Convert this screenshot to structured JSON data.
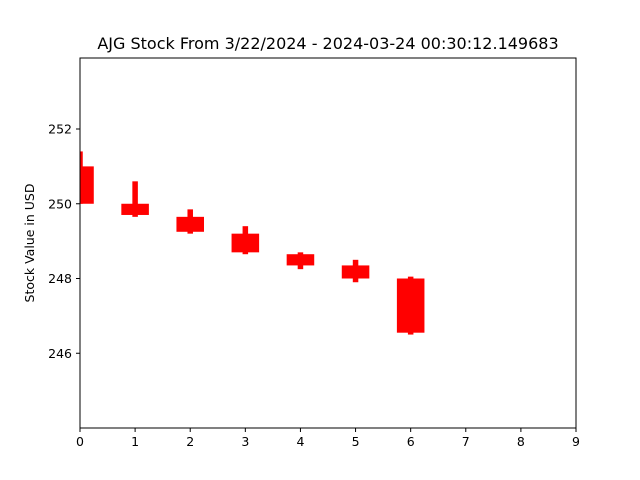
{
  "chart_data": {
    "type": "candlestick",
    "title": "AJG Stock From 3/22/2024 - 2024-03-24 00:30:12.149683",
    "xlabel": "",
    "ylabel": "Stock Value in USD",
    "xlim": [
      0,
      9
    ],
    "ylim": [
      244.0,
      253.9
    ],
    "x_ticks": [
      0,
      1,
      2,
      3,
      4,
      5,
      6,
      7,
      8,
      9
    ],
    "y_ticks": [
      246,
      248,
      250,
      252
    ],
    "grid": false,
    "candle_color": "#ff0000",
    "candles": [
      {
        "x": 0,
        "open": 251.0,
        "high": 251.4,
        "low": 250.0,
        "close": 250.0
      },
      {
        "x": 1,
        "open": 250.0,
        "high": 250.6,
        "low": 249.65,
        "close": 249.7
      },
      {
        "x": 2,
        "open": 249.65,
        "high": 249.85,
        "low": 249.2,
        "close": 249.25
      },
      {
        "x": 3,
        "open": 249.2,
        "high": 249.4,
        "low": 248.65,
        "close": 248.7
      },
      {
        "x": 4,
        "open": 248.65,
        "high": 248.7,
        "low": 248.25,
        "close": 248.35
      },
      {
        "x": 5,
        "open": 248.35,
        "high": 248.5,
        "low": 247.9,
        "close": 248.0
      },
      {
        "x": 6,
        "open": 248.0,
        "high": 248.05,
        "low": 246.5,
        "close": 246.55
      }
    ]
  }
}
